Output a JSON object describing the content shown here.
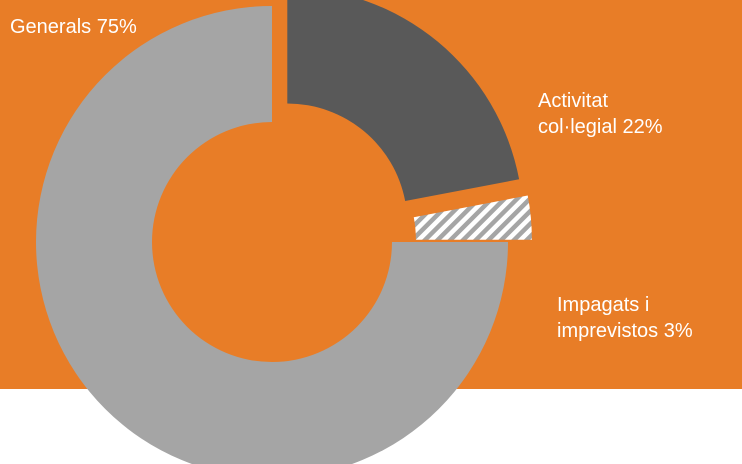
{
  "colors": {
    "background": "#E87D27",
    "below_panel": "#FFFFFF",
    "label_text": "#FFFFFF"
  },
  "chart_data": {
    "type": "pie",
    "donut": true,
    "slices": [
      {
        "label_lines": [
          "Activitat",
          "col·legial 22%"
        ],
        "value": 22,
        "color": "#595959",
        "fill": "solid",
        "exploded": true
      },
      {
        "label_lines": [
          "Impagats i",
          "imprevistos 3%"
        ],
        "value": 3,
        "color": "#A5A5A5",
        "fill": "diagonal-stripes",
        "exploded": true
      },
      {
        "label_lines": [
          "Generals 75%"
        ],
        "value": 75,
        "color": "#A5A5A5",
        "fill": "solid",
        "exploded": false
      }
    ]
  }
}
